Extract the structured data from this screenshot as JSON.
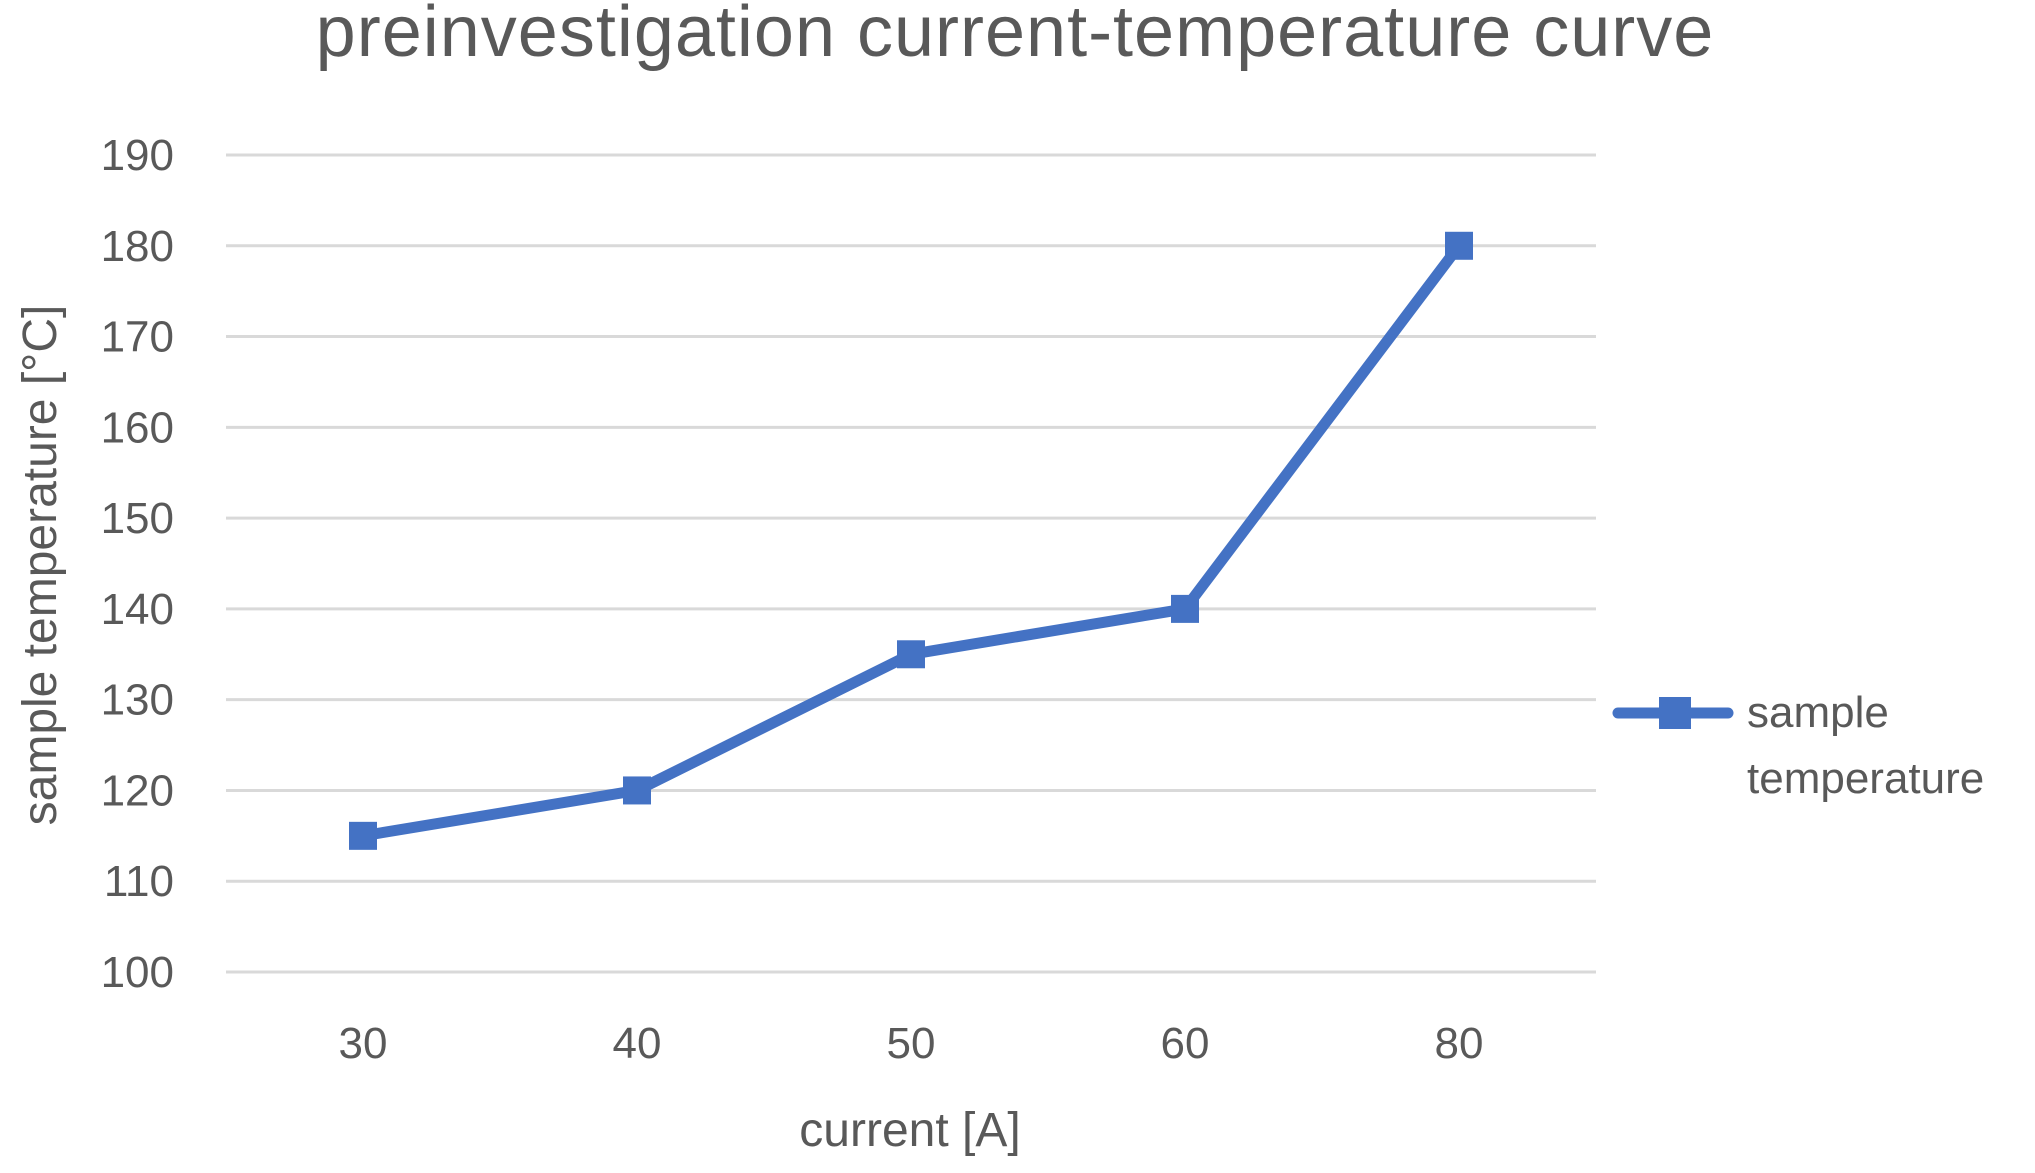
{
  "chart_data": {
    "type": "line",
    "title": "preinvestigation current-temperature curve",
    "xlabel": "current [A]",
    "ylabel": "sample temperature [°C]",
    "categories": [
      "30",
      "40",
      "50",
      "60",
      "80"
    ],
    "series": [
      {
        "name": "sample temperature",
        "values": [
          115,
          120,
          135,
          140,
          180
        ],
        "color": "#4472c4",
        "marker": "square"
      }
    ],
    "ylim": [
      100,
      190
    ],
    "yticks": [
      100,
      110,
      120,
      130,
      140,
      150,
      160,
      170,
      180,
      190
    ],
    "grid": true,
    "legend_position": "right"
  }
}
